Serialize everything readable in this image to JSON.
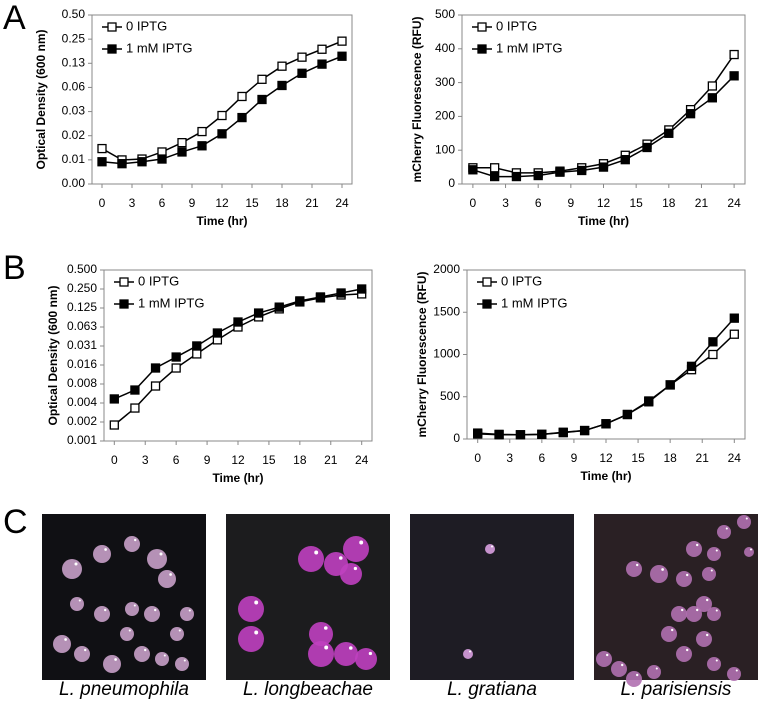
{
  "panel_labels": [
    "A",
    "B",
    "C"
  ],
  "chart_data": [
    {
      "type": "line",
      "xlabel": "Time (hr)",
      "ylabel": "Optical Density (600 nm)",
      "yscale": "log2",
      "legend": "upper left",
      "x": [
        0,
        2,
        4,
        6,
        8,
        10,
        12,
        14,
        16,
        18,
        20,
        22,
        24
      ],
      "xlim": [
        -1,
        25
      ],
      "xticks": [
        0,
        3,
        6,
        9,
        12,
        15,
        18,
        21,
        24
      ],
      "ylim": [
        0.00390625,
        0.5
      ],
      "yticks": [
        {
          "value": 0.00390625,
          "label": "0.00"
        },
        {
          "value": 0.0078125,
          "label": "0.01"
        },
        {
          "value": 0.015625,
          "label": "0.02"
        },
        {
          "value": 0.03125,
          "label": "0.03"
        },
        {
          "value": 0.0625,
          "label": "0.06"
        },
        {
          "value": 0.125,
          "label": "0.13"
        },
        {
          "value": 0.25,
          "label": "0.25"
        },
        {
          "value": 0.5,
          "label": "0.50"
        }
      ],
      "series": [
        {
          "name": "0 IPTG",
          "color": "#000000",
          "marker": "open-square",
          "values": [
            0.0108,
            0.0078,
            0.008,
            0.0098,
            0.0128,
            0.0176,
            0.0279,
            0.0482,
            0.0789,
            0.115,
            0.149,
            0.187,
            0.236
          ]
        },
        {
          "name": "1 mM IPTG",
          "color": "#000000",
          "marker": "filled-square",
          "values": [
            0.0074,
            0.007,
            0.0074,
            0.008,
            0.0098,
            0.0117,
            0.0165,
            0.0263,
            0.0442,
            0.0661,
            0.0938,
            0.122,
            0.153
          ]
        }
      ]
    },
    {
      "type": "line",
      "xlabel": "Time (hr)",
      "ylabel": "mCherry Fluorescence (RFU)",
      "yscale": "linear",
      "legend": "upper left",
      "x": [
        0,
        2,
        4,
        6,
        8,
        10,
        12,
        14,
        16,
        18,
        20,
        22,
        24
      ],
      "xlim": [
        -1,
        25
      ],
      "xticks": [
        0,
        3,
        6,
        9,
        12,
        15,
        18,
        21,
        24
      ],
      "ylim": [
        0,
        500
      ],
      "yticks": [
        0,
        100,
        200,
        300,
        400,
        500
      ],
      "series": [
        {
          "name": "0 IPTG",
          "color": "#000000",
          "marker": "open-square",
          "values": [
            48,
            48,
            33,
            33,
            38,
            48,
            60,
            85,
            118,
            160,
            220,
            290,
            383
          ]
        },
        {
          "name": "1 mM IPTG",
          "color": "#000000",
          "marker": "filled-square",
          "values": [
            42,
            22,
            22,
            25,
            35,
            40,
            50,
            72,
            108,
            150,
            208,
            255,
            320
          ]
        }
      ]
    },
    {
      "type": "line",
      "xlabel": "Time (hr)",
      "ylabel": "Optical Density (600 nm)",
      "yscale": "log2",
      "legend": "upper left",
      "x": [
        0,
        2,
        4,
        6,
        8,
        10,
        12,
        14,
        16,
        18,
        20,
        22,
        24
      ],
      "xlim": [
        -1,
        25
      ],
      "xticks": [
        0,
        3,
        6,
        9,
        12,
        15,
        18,
        21,
        24
      ],
      "ylim": [
        0.0009765625,
        0.5
      ],
      "yticks": [
        {
          "value": 0.0009765625,
          "label": "0.001"
        },
        {
          "value": 0.001953125,
          "label": "0.002"
        },
        {
          "value": 0.00390625,
          "label": "0.004"
        },
        {
          "value": 0.0078125,
          "label": "0.008"
        },
        {
          "value": 0.015625,
          "label": "0.016"
        },
        {
          "value": 0.03125,
          "label": "0.031"
        },
        {
          "value": 0.0625,
          "label": "0.063"
        },
        {
          "value": 0.125,
          "label": "0.125"
        },
        {
          "value": 0.25,
          "label": "0.250"
        },
        {
          "value": 0.5,
          "label": "0.500"
        }
      ],
      "series": [
        {
          "name": "0 IPTG",
          "color": "#000000",
          "marker": "open-square",
          "values": [
            0.00175,
            0.00325,
            0.00726,
            0.014,
            0.0234,
            0.0391,
            0.0625,
            0.0903,
            0.121,
            0.156,
            0.181,
            0.201,
            0.209
          ]
        },
        {
          "name": "1 mM IPTG",
          "color": "#000000",
          "marker": "filled-square",
          "values": [
            0.00453,
            0.00627,
            0.014,
            0.0209,
            0.0313,
            0.0502,
            0.075,
            0.104,
            0.129,
            0.162,
            0.187,
            0.216,
            0.25
          ]
        }
      ]
    },
    {
      "type": "line",
      "xlabel": "Time (hr)",
      "ylabel": "mCherry Fluorescence (RFU)",
      "yscale": "linear",
      "legend": "upper left",
      "x": [
        0,
        2,
        4,
        6,
        8,
        10,
        12,
        14,
        16,
        18,
        20,
        22,
        24
      ],
      "xlim": [
        -1,
        25
      ],
      "xticks": [
        0,
        3,
        6,
        9,
        12,
        15,
        18,
        21,
        24
      ],
      "ylim": [
        0,
        2000
      ],
      "yticks": [
        0,
        500,
        1000,
        1500,
        2000
      ],
      "series": [
        {
          "name": "0 IPTG",
          "color": "#000000",
          "marker": "open-square",
          "values": [
            60,
            50,
            50,
            55,
            75,
            100,
            180,
            290,
            440,
            640,
            820,
            1000,
            1240
          ]
        },
        {
          "name": "1 mM IPTG",
          "color": "#000000",
          "marker": "filled-square",
          "values": [
            70,
            55,
            50,
            55,
            80,
            100,
            180,
            290,
            450,
            640,
            860,
            1150,
            1430
          ]
        }
      ]
    }
  ],
  "images": [
    {
      "caption": "L. pneumophila"
    },
    {
      "caption": "L. longbeachae"
    },
    {
      "caption": "L. gratiana"
    },
    {
      "caption": "L. parisiensis"
    }
  ]
}
